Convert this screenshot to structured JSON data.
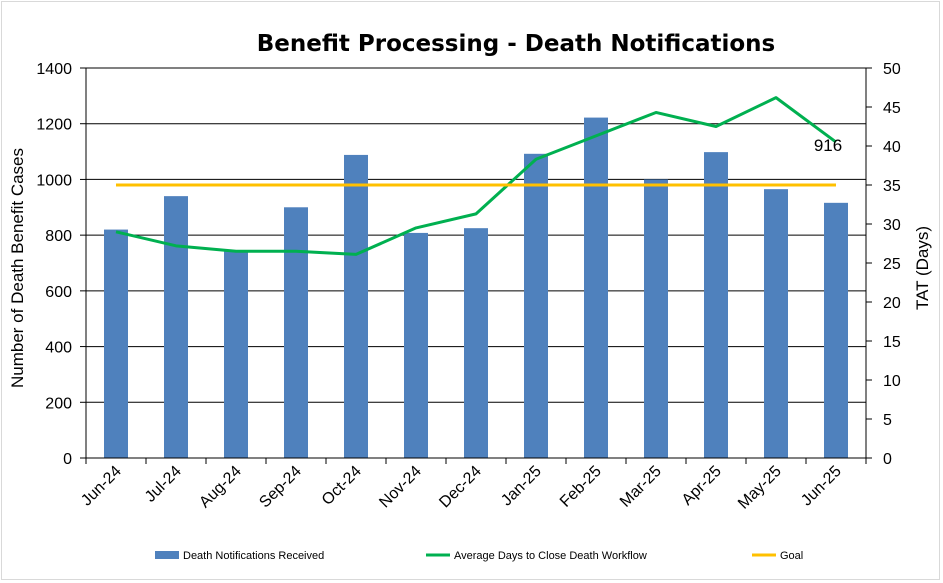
{
  "chart_data": {
    "type": "bar+line",
    "title": "Benefit Processing - Death Notifications",
    "ylabel_left": "Number of Death Benefit Cases",
    "ylabel_right": "TAT (Days)",
    "ylim_left": [
      0,
      1400
    ],
    "ylim_right": [
      0,
      50
    ],
    "yticks_left": [
      "0",
      "200",
      "400",
      "600",
      "800",
      "1000",
      "1200",
      "1400"
    ],
    "yticks_right": [
      "0",
      "5",
      "10",
      "15",
      "20",
      "25",
      "30",
      "35",
      "40",
      "45",
      "50"
    ],
    "categories": [
      "Jun-24",
      "Jul-24",
      "Aug-24",
      "Sep-24",
      "Oct-24",
      "Nov-24",
      "Dec-24",
      "Jan-25",
      "Feb-25",
      "Mar-25",
      "Apr-25",
      "May-25",
      "Jun-25"
    ],
    "series": [
      {
        "name": "Death Notifications Received",
        "type": "bar",
        "axis": "left",
        "color": "#4f81bd",
        "values": [
          820,
          940,
          745,
          900,
          1088,
          808,
          825,
          1092,
          1222,
          1000,
          1098,
          965,
          916
        ]
      },
      {
        "name": "Average Days to Close Death Workflow",
        "type": "line",
        "axis": "right",
        "color": "#00b050",
        "values": [
          29.0,
          27.2,
          26.5,
          26.5,
          26.1,
          29.5,
          31.3,
          38.3,
          41.3,
          44.3,
          42.5,
          46.2,
          40.5
        ]
      },
      {
        "name": "Goal",
        "type": "line",
        "axis": "right",
        "color": "#ffc000",
        "values": [
          35,
          35,
          35,
          35,
          35,
          35,
          35,
          35,
          35,
          35,
          35,
          35,
          35
        ]
      }
    ],
    "data_labels": [
      {
        "series": "Death Notifications Received",
        "category": "Jun-25",
        "text": "916"
      }
    ],
    "grid": true,
    "legend_position": "bottom"
  }
}
